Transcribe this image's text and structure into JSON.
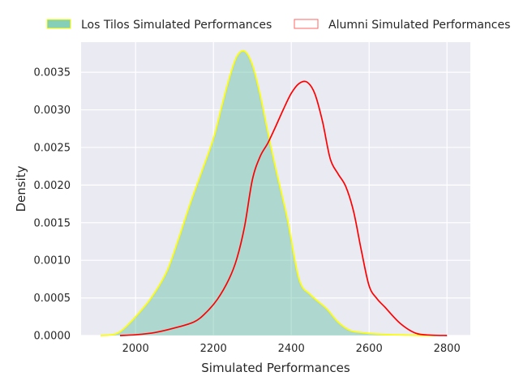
{
  "chart_data": {
    "type": "area",
    "title": "",
    "xlabel": "Simulated Performances",
    "ylabel": "Density",
    "xlim": [
      1860,
      2860
    ],
    "ylim": [
      0,
      0.0039
    ],
    "x_ticks": [
      2000,
      2200,
      2400,
      2600,
      2800
    ],
    "x_tick_labels": [
      "2000",
      "2200",
      "2400",
      "2600",
      "2800"
    ],
    "y_ticks": [
      0,
      0.0005,
      0.001,
      0.0015,
      0.002,
      0.0025,
      0.003,
      0.0035
    ],
    "y_tick_labels": [
      "0.0000",
      "0.0005",
      "0.0010",
      "0.0015",
      "0.0020",
      "0.0025",
      "0.0030",
      "0.0035"
    ],
    "grid": true,
    "legend_position": "top, above plot",
    "series": [
      {
        "name": "Los Tilos Simulated Performances",
        "fill_color": "#66c2a5",
        "edge_color": "#ffff00",
        "filled": true,
        "x": [
          1910,
          1940,
          1960,
          1980,
          2000,
          2040,
          2080,
          2110,
          2140,
          2170,
          2200,
          2220,
          2240,
          2260,
          2280,
          2300,
          2320,
          2340,
          2360,
          2390,
          2420,
          2450,
          2490,
          2520,
          2550,
          2580,
          2620,
          2660,
          2700,
          2740,
          2770
        ],
        "y": [
          0.0,
          1e-05,
          5e-05,
          0.00014,
          0.00025,
          0.0005,
          0.00085,
          0.00128,
          0.00175,
          0.00218,
          0.00262,
          0.00302,
          0.00341,
          0.00371,
          0.00378,
          0.0036,
          0.0032,
          0.0027,
          0.00222,
          0.00155,
          0.00075,
          0.00054,
          0.00036,
          0.00018,
          7e-05,
          4e-05,
          2e-05,
          1e-05,
          5e-06,
          0.0,
          0.0
        ]
      },
      {
        "name": "Alumni Simulated Performances",
        "fill_color": "#ff6666",
        "edge_color": "#ff0000",
        "filled": false,
        "x": [
          1960,
          2000,
          2050,
          2100,
          2150,
          2180,
          2210,
          2240,
          2260,
          2280,
          2300,
          2320,
          2340,
          2360,
          2380,
          2400,
          2420,
          2440,
          2460,
          2480,
          2500,
          2520,
          2540,
          2560,
          2580,
          2600,
          2620,
          2640,
          2680,
          2720,
          2760,
          2800
        ],
        "y": [
          0.0,
          1e-05,
          4e-05,
          0.0001,
          0.00018,
          0.0003,
          0.00048,
          0.00075,
          0.00102,
          0.00145,
          0.00207,
          0.00238,
          0.00256,
          0.00278,
          0.00301,
          0.00322,
          0.00335,
          0.00337,
          0.00322,
          0.00285,
          0.00235,
          0.00215,
          0.00198,
          0.00165,
          0.00113,
          0.00066,
          0.00049,
          0.00038,
          0.00016,
          3e-05,
          5e-06,
          0.0
        ]
      }
    ]
  }
}
